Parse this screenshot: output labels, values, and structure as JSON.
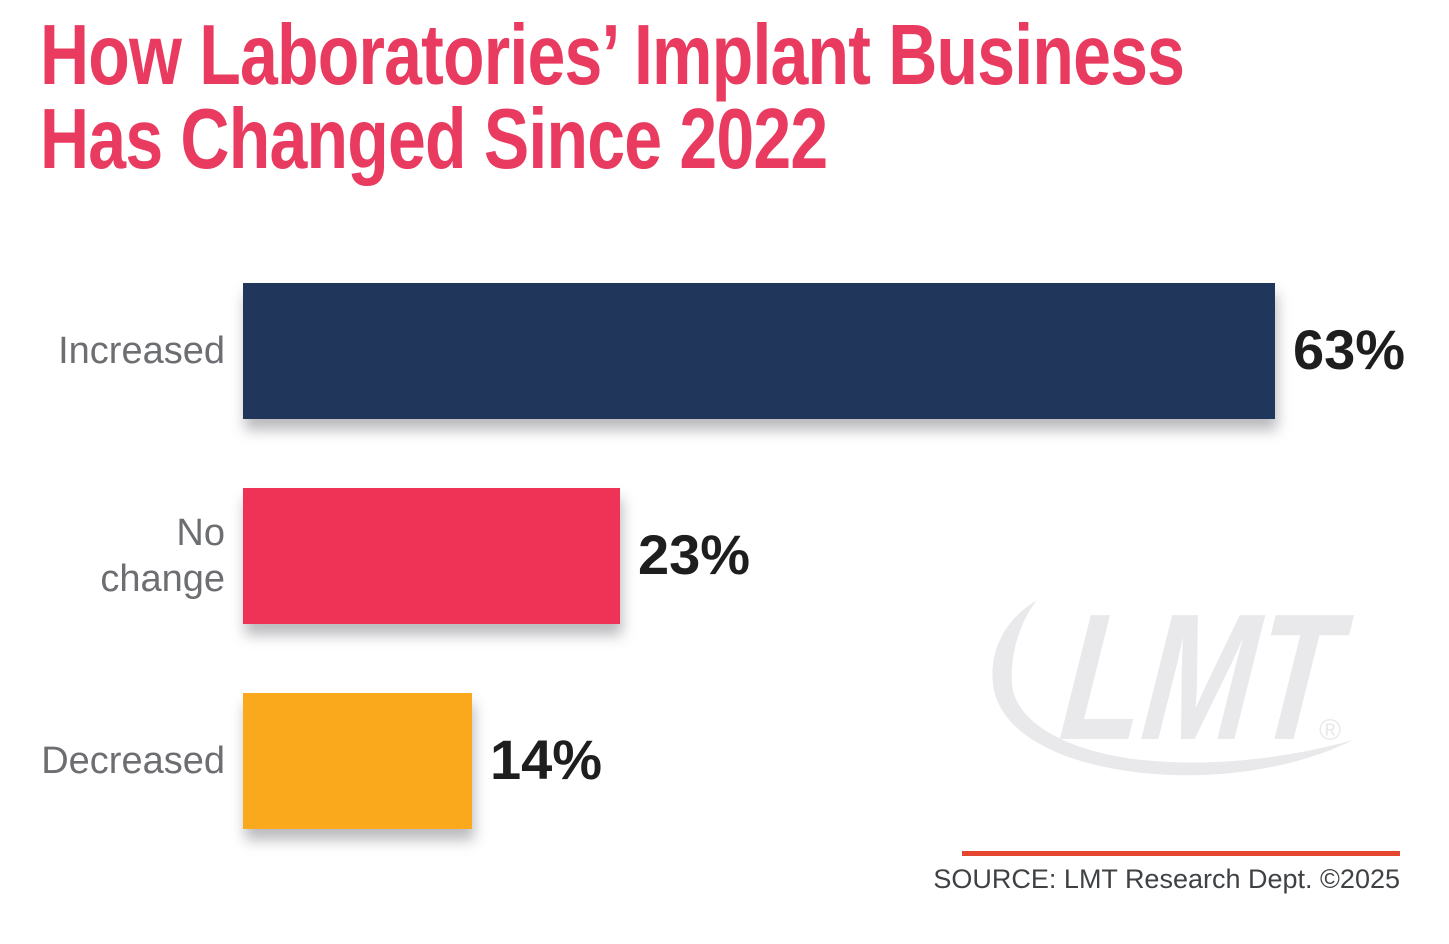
{
  "title": {
    "line1": "How Laboratories’ Implant Business",
    "line2": "Has Changed Since 2022"
  },
  "chart_data": {
    "type": "bar",
    "orientation": "horizontal",
    "title": "How Laboratories’ Implant Business Has Changed Since 2022",
    "categories": [
      "Increased",
      "No change",
      "Decreased"
    ],
    "label_lines": [
      [
        "Increased"
      ],
      [
        "No",
        "change"
      ],
      [
        "Decreased"
      ]
    ],
    "values": [
      63,
      23,
      14
    ],
    "value_labels": [
      "63%",
      "23%",
      "14%"
    ],
    "bar_colors": [
      "#21365b",
      "#ee3356",
      "#faa91c"
    ],
    "xlabel": "",
    "ylabel": "",
    "xlim": [
      0,
      63
    ],
    "grid": false,
    "legend": "none",
    "value_label_position": "right-of-bar"
  },
  "watermark": {
    "text": "LMT",
    "registered": "®",
    "color": "#e9e9eb"
  },
  "footer": {
    "source_text": "SOURCE: LMT Research Dept. ©2025"
  },
  "colors": {
    "title_text": "#e93a5f",
    "bar_navy": "#21365b",
    "bar_pink": "#ee3356",
    "bar_orange": "#faa91c",
    "category_label": "#6d6e71",
    "value_label": "#1e1e1e",
    "source_rule": "#e5462f",
    "source_text": "#3f4245",
    "watermark": "#e9e9eb",
    "background": "#ffffff"
  }
}
